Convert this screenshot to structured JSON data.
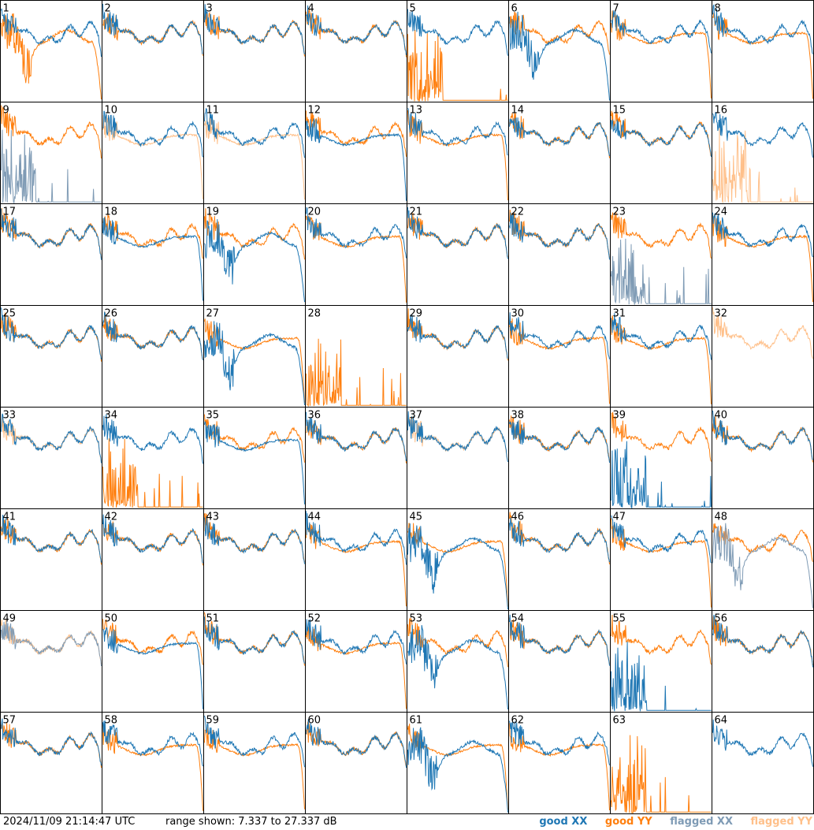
{
  "footer": {
    "timestamp": "2024/11/09 21:14:47 UTC",
    "range_text": "range shown: 7.337 to 27.337 dB"
  },
  "legend": [
    {
      "label": "good XX",
      "color": "#1f77b4"
    },
    {
      "label": "good YY",
      "color": "#ff7f0e"
    },
    {
      "label": "flagged XX",
      "color": "#7f9bb5"
    },
    {
      "label": "flagged YY",
      "color": "#ffc08a"
    }
  ],
  "chart_data": {
    "type": "line",
    "layout": "8x8 small multiples",
    "y_range_db": [
      7.337,
      27.337
    ],
    "panels": [
      {
        "id": "1",
        "xx": "good",
        "yy": "good",
        "xx_shape": "typical",
        "yy_shape": "dropout"
      },
      {
        "id": "2",
        "xx": "good",
        "yy": "good",
        "xx_shape": "typical",
        "yy_shape": "typical"
      },
      {
        "id": "3",
        "xx": "good",
        "yy": "good",
        "xx_shape": "typical",
        "yy_shape": "typical"
      },
      {
        "id": "4",
        "xx": "good",
        "yy": "good",
        "xx_shape": "typical",
        "yy_shape": "typical"
      },
      {
        "id": "5",
        "xx": "good",
        "yy": "good",
        "xx_shape": "typical",
        "yy_shape": "noise"
      },
      {
        "id": "6",
        "xx": "good",
        "yy": "good",
        "xx_shape": "dropout",
        "yy_shape": "typical"
      },
      {
        "id": "7",
        "xx": "good",
        "yy": "good",
        "xx_shape": "typical",
        "yy_shape": "lowtail"
      },
      {
        "id": "8",
        "xx": "good",
        "yy": "good",
        "xx_shape": "typical",
        "yy_shape": "lowtail"
      },
      {
        "id": "9",
        "xx": "flagged",
        "yy": "good",
        "xx_shape": "noise",
        "yy_shape": "typical"
      },
      {
        "id": "10",
        "xx": "good",
        "yy": "flagged",
        "xx_shape": "typical",
        "yy_shape": "lowtail"
      },
      {
        "id": "11",
        "xx": "good",
        "yy": "flagged",
        "xx_shape": "typical",
        "yy_shape": "lowtail"
      },
      {
        "id": "12",
        "xx": "good",
        "yy": "good",
        "xx_shape": "lowtail",
        "yy_shape": "typical"
      },
      {
        "id": "13",
        "xx": "good",
        "yy": "good",
        "xx_shape": "typical",
        "yy_shape": "lowtail"
      },
      {
        "id": "14",
        "xx": "good",
        "yy": "good",
        "xx_shape": "typical",
        "yy_shape": "typical"
      },
      {
        "id": "15",
        "xx": "good",
        "yy": "good",
        "xx_shape": "typical",
        "yy_shape": "typical"
      },
      {
        "id": "16",
        "xx": "good",
        "yy": "flagged",
        "xx_shape": "typical",
        "yy_shape": "noise"
      },
      {
        "id": "17",
        "xx": "good",
        "yy": "good",
        "xx_shape": "typical",
        "yy_shape": "typical"
      },
      {
        "id": "18",
        "xx": "good",
        "yy": "good",
        "xx_shape": "lowtail",
        "yy_shape": "typical"
      },
      {
        "id": "19",
        "xx": "good",
        "yy": "good",
        "xx_shape": "dropout",
        "yy_shape": "typical"
      },
      {
        "id": "20",
        "xx": "good",
        "yy": "good",
        "xx_shape": "typical",
        "yy_shape": "lowtail"
      },
      {
        "id": "21",
        "xx": "good",
        "yy": "good",
        "xx_shape": "typical",
        "yy_shape": "typical"
      },
      {
        "id": "22",
        "xx": "good",
        "yy": "good",
        "xx_shape": "typical",
        "yy_shape": "typical"
      },
      {
        "id": "23",
        "xx": "flagged",
        "yy": "good",
        "xx_shape": "noise",
        "yy_shape": "typical"
      },
      {
        "id": "24",
        "xx": "good",
        "yy": "good",
        "xx_shape": "typical",
        "yy_shape": "lowtail"
      },
      {
        "id": "25",
        "xx": "good",
        "yy": "good",
        "xx_shape": "typical",
        "yy_shape": "typical"
      },
      {
        "id": "26",
        "xx": "good",
        "yy": "good",
        "xx_shape": "typical",
        "yy_shape": "typical"
      },
      {
        "id": "27",
        "xx": "good",
        "yy": "good",
        "xx_shape": "dropout",
        "yy_shape": "lowtail"
      },
      {
        "id": "28",
        "xx": "good",
        "yy": "good",
        "xx_shape": "none",
        "yy_shape": "noise"
      },
      {
        "id": "29",
        "xx": "good",
        "yy": "good",
        "xx_shape": "typical",
        "yy_shape": "typical"
      },
      {
        "id": "30",
        "xx": "good",
        "yy": "good",
        "xx_shape": "typical",
        "yy_shape": "lowtail"
      },
      {
        "id": "31",
        "xx": "good",
        "yy": "good",
        "xx_shape": "typical",
        "yy_shape": "lowtail"
      },
      {
        "id": "32",
        "xx": "flagged",
        "yy": "flagged",
        "xx_shape": "none",
        "yy_shape": "typical"
      },
      {
        "id": "33",
        "xx": "good",
        "yy": "flagged",
        "xx_shape": "typical",
        "yy_shape": "typical"
      },
      {
        "id": "34",
        "xx": "good",
        "yy": "good",
        "xx_shape": "typical",
        "yy_shape": "noise"
      },
      {
        "id": "35",
        "xx": "good",
        "yy": "good",
        "xx_shape": "lowtail",
        "yy_shape": "typical"
      },
      {
        "id": "36",
        "xx": "good",
        "yy": "good",
        "xx_shape": "typical",
        "yy_shape": "typical"
      },
      {
        "id": "37",
        "xx": "good",
        "yy": "flagged",
        "xx_shape": "typical",
        "yy_shape": "typical"
      },
      {
        "id": "38",
        "xx": "good",
        "yy": "good",
        "xx_shape": "typical",
        "yy_shape": "typical"
      },
      {
        "id": "39",
        "xx": "good",
        "yy": "good",
        "xx_shape": "noise",
        "yy_shape": "typical"
      },
      {
        "id": "40",
        "xx": "good",
        "yy": "good",
        "xx_shape": "typical",
        "yy_shape": "typical"
      },
      {
        "id": "41",
        "xx": "good",
        "yy": "good",
        "xx_shape": "typical",
        "yy_shape": "typical"
      },
      {
        "id": "42",
        "xx": "good",
        "yy": "good",
        "xx_shape": "typical",
        "yy_shape": "typical"
      },
      {
        "id": "43",
        "xx": "good",
        "yy": "good",
        "xx_shape": "typical",
        "yy_shape": "typical"
      },
      {
        "id": "44",
        "xx": "good",
        "yy": "good",
        "xx_shape": "typical",
        "yy_shape": "lowtail"
      },
      {
        "id": "45",
        "xx": "good",
        "yy": "good",
        "xx_shape": "dropout",
        "yy_shape": "lowtail"
      },
      {
        "id": "46",
        "xx": "good",
        "yy": "good",
        "xx_shape": "typical",
        "yy_shape": "typical"
      },
      {
        "id": "47",
        "xx": "good",
        "yy": "good",
        "xx_shape": "typical",
        "yy_shape": "lowtail"
      },
      {
        "id": "48",
        "xx": "flagged",
        "yy": "good",
        "xx_shape": "dropout",
        "yy_shape": "typical"
      },
      {
        "id": "49",
        "xx": "flagged",
        "yy": "flagged",
        "xx_shape": "typical",
        "yy_shape": "typical"
      },
      {
        "id": "50",
        "xx": "good",
        "yy": "good",
        "xx_shape": "lowtail",
        "yy_shape": "typical"
      },
      {
        "id": "51",
        "xx": "good",
        "yy": "good",
        "xx_shape": "typical",
        "yy_shape": "typical"
      },
      {
        "id": "52",
        "xx": "good",
        "yy": "good",
        "xx_shape": "typical",
        "yy_shape": "lowtail"
      },
      {
        "id": "53",
        "xx": "good",
        "yy": "good",
        "xx_shape": "dropout",
        "yy_shape": "typical"
      },
      {
        "id": "54",
        "xx": "good",
        "yy": "good",
        "xx_shape": "typical",
        "yy_shape": "typical"
      },
      {
        "id": "55",
        "xx": "good",
        "yy": "good",
        "xx_shape": "noise",
        "yy_shape": "typical"
      },
      {
        "id": "56",
        "xx": "good",
        "yy": "good",
        "xx_shape": "typical",
        "yy_shape": "typical"
      },
      {
        "id": "57",
        "xx": "good",
        "yy": "good",
        "xx_shape": "typical",
        "yy_shape": "typical"
      },
      {
        "id": "58",
        "xx": "good",
        "yy": "good",
        "xx_shape": "typical",
        "yy_shape": "lowtail"
      },
      {
        "id": "59",
        "xx": "good",
        "yy": "good",
        "xx_shape": "typical",
        "yy_shape": "lowtail"
      },
      {
        "id": "60",
        "xx": "good",
        "yy": "good",
        "xx_shape": "typical",
        "yy_shape": "typical"
      },
      {
        "id": "61",
        "xx": "good",
        "yy": "good",
        "xx_shape": "dropout",
        "yy_shape": "lowtail"
      },
      {
        "id": "62",
        "xx": "good",
        "yy": "good",
        "xx_shape": "typical",
        "yy_shape": "lowtail"
      },
      {
        "id": "63",
        "xx": "good",
        "yy": "good",
        "xx_shape": "none",
        "yy_shape": "noise"
      },
      {
        "id": "64",
        "xx": "good",
        "yy": "good",
        "xx_shape": "typical",
        "yy_shape": "none"
      }
    ]
  }
}
